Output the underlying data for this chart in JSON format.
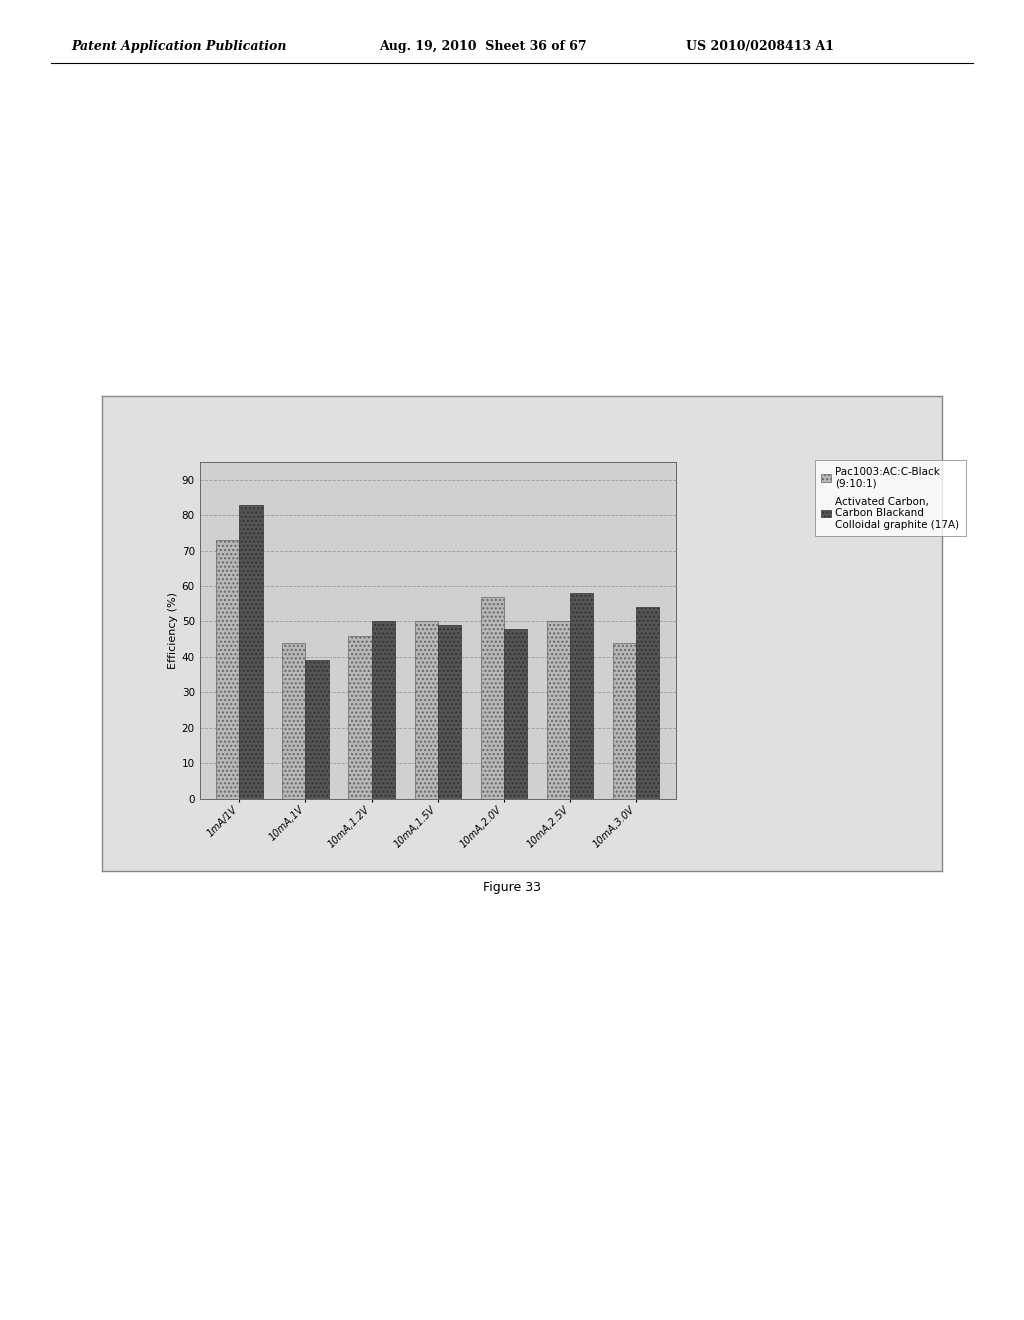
{
  "categories": [
    "1mA/1V",
    "10mA,1V",
    "10mA,1.2V",
    "10mA,1.5V",
    "10mA,2.0V",
    "10mA,2.5V",
    "10mA,3.0V"
  ],
  "series1_label": "Pac1003:AC:C-Black\n(9:10:1)",
  "series2_label": "Activated Carbon,\nCarbon Blackand\nColloidal graphite (17A)",
  "series1_values": [
    73,
    44,
    46,
    50,
    57,
    50,
    44
  ],
  "series2_values": [
    83,
    39,
    50,
    49,
    48,
    58,
    54
  ],
  "series1_color": "#b8b8b8",
  "series2_color": "#555555",
  "ylabel": "Efficiency (%)",
  "ylim": [
    0,
    95
  ],
  "yticks": [
    0,
    10,
    20,
    30,
    40,
    50,
    60,
    70,
    80,
    90
  ],
  "figure_label": "Figure 33",
  "header_left": "Patent Application Publication",
  "header_mid": "Aug. 19, 2010  Sheet 36 of 67",
  "header_right": "US 2010/0208413 A1"
}
